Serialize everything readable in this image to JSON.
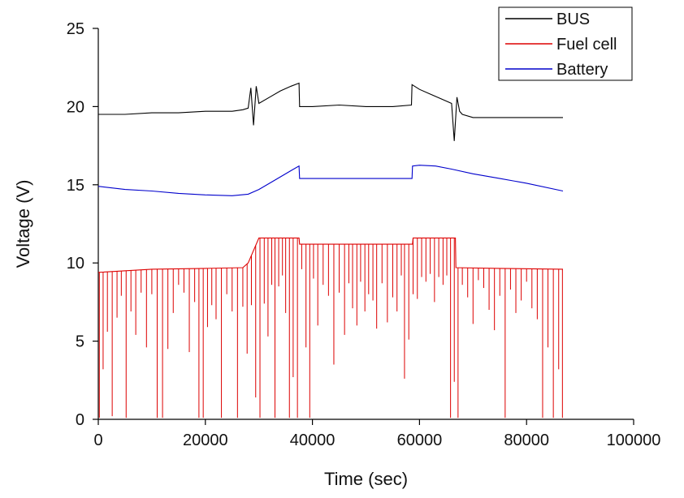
{
  "chart_data": {
    "type": "line",
    "title": "",
    "xlabel": "Time (sec)",
    "ylabel": "Voltage (V)",
    "xlim": [
      0,
      100000
    ],
    "ylim": [
      0,
      25
    ],
    "x_ticks": [
      0,
      20000,
      40000,
      60000,
      80000,
      100000
    ],
    "y_ticks": [
      0,
      5,
      10,
      15,
      20,
      25
    ],
    "grid": false,
    "legend_position": "top-right",
    "series": [
      {
        "name": "BUS",
        "color": "#000000",
        "x": [
          0,
          5000,
          10000,
          15000,
          20000,
          25000,
          27000,
          28000,
          28500,
          29000,
          29500,
          30000,
          32000,
          34000,
          36000,
          37500,
          37600,
          40000,
          45000,
          50000,
          55000,
          58500,
          58600,
          60000,
          62000,
          64000,
          66000,
          66500,
          67000,
          67500,
          68000,
          70000,
          72000,
          75000,
          80000,
          85000,
          86800
        ],
        "y": [
          19.5,
          19.5,
          19.6,
          19.6,
          19.7,
          19.7,
          19.8,
          19.9,
          21.2,
          18.8,
          21.3,
          20.2,
          20.6,
          21.0,
          21.3,
          21.5,
          20.0,
          20.0,
          20.1,
          20.0,
          20.0,
          20.1,
          21.4,
          21.1,
          20.8,
          20.5,
          20.2,
          17.8,
          20.6,
          19.7,
          19.5,
          19.3,
          19.3,
          19.3,
          19.3,
          19.3,
          19.3
        ]
      },
      {
        "name": "Fuel cell",
        "color": "#dd0000",
        "x": [
          0,
          10000,
          20000,
          27000,
          28000,
          30000,
          37500,
          37600,
          50000,
          58700,
          58800,
          66700,
          66800,
          75000,
          86800
        ],
        "y": [
          9.4,
          9.6,
          9.65,
          9.7,
          10.0,
          11.6,
          11.6,
          11.2,
          11.2,
          11.2,
          11.6,
          11.6,
          9.7,
          9.65,
          9.6
        ]
      },
      {
        "name": "Battery",
        "color": "#0000cc",
        "x": [
          0,
          5000,
          10000,
          15000,
          20000,
          25000,
          28000,
          30000,
          33000,
          36000,
          37500,
          37600,
          58600,
          58700,
          60000,
          63000,
          66000,
          70000,
          75000,
          80000,
          86800
        ],
        "y": [
          14.9,
          14.7,
          14.6,
          14.45,
          14.35,
          14.3,
          14.4,
          14.7,
          15.3,
          15.9,
          16.2,
          15.4,
          15.4,
          16.2,
          16.25,
          16.2,
          16.0,
          15.7,
          15.4,
          15.1,
          14.6
        ]
      }
    ],
    "fuel_cell_dips": [
      {
        "x": 200,
        "y": 0.1
      },
      {
        "x": 900,
        "y": 3.2
      },
      {
        "x": 1700,
        "y": 5.6
      },
      {
        "x": 2600,
        "y": 0.2
      },
      {
        "x": 3500,
        "y": 6.5
      },
      {
        "x": 4300,
        "y": 7.9
      },
      {
        "x": 5200,
        "y": 0.1
      },
      {
        "x": 6100,
        "y": 6.9
      },
      {
        "x": 7000,
        "y": 5.4
      },
      {
        "x": 8000,
        "y": 8.1
      },
      {
        "x": 9000,
        "y": 4.6
      },
      {
        "x": 10000,
        "y": 8.0
      },
      {
        "x": 11000,
        "y": 0.1
      },
      {
        "x": 12000,
        "y": 0.1
      },
      {
        "x": 13000,
        "y": 4.5
      },
      {
        "x": 14000,
        "y": 6.8
      },
      {
        "x": 15000,
        "y": 8.6
      },
      {
        "x": 16000,
        "y": 8.1
      },
      {
        "x": 17000,
        "y": 4.3
      },
      {
        "x": 18000,
        "y": 7.5
      },
      {
        "x": 18800,
        "y": 0.1
      },
      {
        "x": 19600,
        "y": 0.1
      },
      {
        "x": 20400,
        "y": 5.9
      },
      {
        "x": 21200,
        "y": 7.3
      },
      {
        "x": 22000,
        "y": 6.4
      },
      {
        "x": 23000,
        "y": 0.1
      },
      {
        "x": 24000,
        "y": 8.0
      },
      {
        "x": 25000,
        "y": 6.9
      },
      {
        "x": 26000,
        "y": 0.1
      },
      {
        "x": 27000,
        "y": 7.2
      },
      {
        "x": 27800,
        "y": 4.2
      },
      {
        "x": 28600,
        "y": 7.3
      },
      {
        "x": 29400,
        "y": 1.4
      },
      {
        "x": 30200,
        "y": 0.1
      },
      {
        "x": 31000,
        "y": 7.4
      },
      {
        "x": 31700,
        "y": 5.3
      },
      {
        "x": 32400,
        "y": 8.6
      },
      {
        "x": 33000,
        "y": 0.1
      },
      {
        "x": 33700,
        "y": 8.5
      },
      {
        "x": 34400,
        "y": 9.2
      },
      {
        "x": 35000,
        "y": 6.8
      },
      {
        "x": 35700,
        "y": 0.1
      },
      {
        "x": 36400,
        "y": 2.7
      },
      {
        "x": 37200,
        "y": 0.1
      },
      {
        "x": 38000,
        "y": 9.6
      },
      {
        "x": 38800,
        "y": 4.6
      },
      {
        "x": 39500,
        "y": 0.1
      },
      {
        "x": 40200,
        "y": 9.0
      },
      {
        "x": 41000,
        "y": 6.0
      },
      {
        "x": 42000,
        "y": 8.6
      },
      {
        "x": 43000,
        "y": 7.9
      },
      {
        "x": 44000,
        "y": 3.5
      },
      {
        "x": 45000,
        "y": 8.1
      },
      {
        "x": 46000,
        "y": 5.4
      },
      {
        "x": 46800,
        "y": 8.7
      },
      {
        "x": 47500,
        "y": 7.1
      },
      {
        "x": 48300,
        "y": 6.0
      },
      {
        "x": 49000,
        "y": 8.8
      },
      {
        "x": 49800,
        "y": 6.9
      },
      {
        "x": 50500,
        "y": 8.0
      },
      {
        "x": 51300,
        "y": 7.6
      },
      {
        "x": 52000,
        "y": 5.8
      },
      {
        "x": 53000,
        "y": 8.7
      },
      {
        "x": 54000,
        "y": 6.2
      },
      {
        "x": 55000,
        "y": 7.8
      },
      {
        "x": 55800,
        "y": 6.9
      },
      {
        "x": 56600,
        "y": 9.2
      },
      {
        "x": 57200,
        "y": 2.6
      },
      {
        "x": 58000,
        "y": 5.1
      },
      {
        "x": 58800,
        "y": 8.0
      },
      {
        "x": 59600,
        "y": 7.7
      },
      {
        "x": 60400,
        "y": 9.1
      },
      {
        "x": 61200,
        "y": 8.8
      },
      {
        "x": 62000,
        "y": 9.3
      },
      {
        "x": 62800,
        "y": 7.5
      },
      {
        "x": 63600,
        "y": 9.1
      },
      {
        "x": 64400,
        "y": 8.6
      },
      {
        "x": 65100,
        "y": 9.2
      },
      {
        "x": 65800,
        "y": 0.1
      },
      {
        "x": 66500,
        "y": 2.4
      },
      {
        "x": 67200,
        "y": 0.1
      },
      {
        "x": 68000,
        "y": 8.6
      },
      {
        "x": 69000,
        "y": 7.8
      },
      {
        "x": 70000,
        "y": 6.1
      },
      {
        "x": 71000,
        "y": 8.9
      },
      {
        "x": 72000,
        "y": 8.4
      },
      {
        "x": 73000,
        "y": 7.0
      },
      {
        "x": 74000,
        "y": 5.7
      },
      {
        "x": 75000,
        "y": 7.9
      },
      {
        "x": 76000,
        "y": 0.1
      },
      {
        "x": 77000,
        "y": 8.3
      },
      {
        "x": 78000,
        "y": 6.8
      },
      {
        "x": 79000,
        "y": 7.6
      },
      {
        "x": 80000,
        "y": 8.8
      },
      {
        "x": 81000,
        "y": 7.1
      },
      {
        "x": 82000,
        "y": 6.4
      },
      {
        "x": 83000,
        "y": 0.1
      },
      {
        "x": 84000,
        "y": 4.6
      },
      {
        "x": 85000,
        "y": 0.1
      },
      {
        "x": 86000,
        "y": 3.2
      },
      {
        "x": 86700,
        "y": 0.1
      }
    ]
  }
}
